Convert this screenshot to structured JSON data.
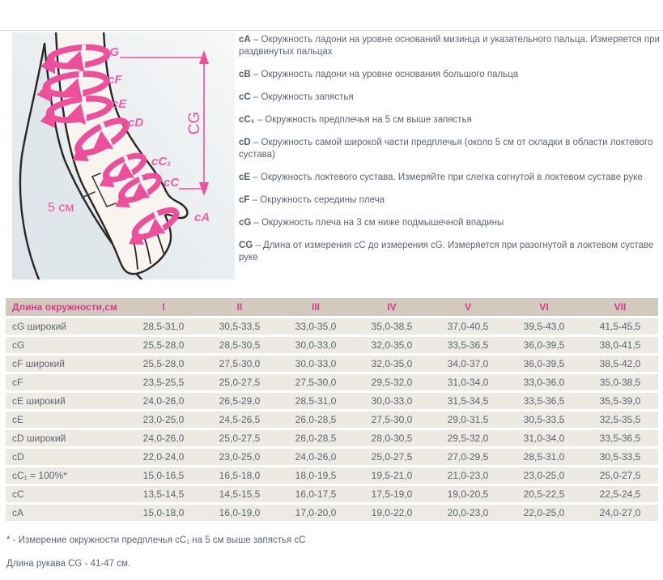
{
  "colors": {
    "accent_pink": "#ee4f9b",
    "table_header_pink": "#d93a8c",
    "table_header_bg": "#d2c9bf",
    "table_row_bg": "#edeae4",
    "body_text": "#5a6572"
  },
  "diagram": {
    "band_labels": [
      "cG",
      "cF",
      "cE",
      "cD",
      "cC₁",
      "cC",
      "cA"
    ],
    "length_dimension_label": "CG",
    "distance_label": "5 см"
  },
  "descriptions": [
    {
      "code": "cA",
      "text": "– Окружность ладони на уровне оснований мизинца и указательного пальца. Измеряется при раздвинутых пальцах"
    },
    {
      "code": "cB",
      "text": "– Окружность ладони на уровне основания большого пальца"
    },
    {
      "code": "cC",
      "text": "– Окружность запястья"
    },
    {
      "code": "cC₁",
      "text": "– Окружность предплечья на 5 см выше запястья"
    },
    {
      "code": "cD",
      "text": "– Окружность самой широкой части предплечья (около 5 см от складки в области локтевого сустава)"
    },
    {
      "code": "cE",
      "text": "– Окружность локтевого сустава. Измеряйте при слегка согнутой в локтевом суставе руке"
    },
    {
      "code": "cF",
      "text": "– Окружность середины плеча"
    },
    {
      "code": "cG",
      "text": "– Окружность плеча на 3 см ниже подмышечной впадины"
    },
    {
      "code": "CG",
      "text": "– Длина от измерения cC до измерения cG. Измеряется при разогнутой в локтевом суставе руке"
    }
  ],
  "table": {
    "header": {
      "label": "Длина окружности,см",
      "sizes": [
        "I",
        "II",
        "III",
        "IV",
        "V",
        "VI",
        "VII"
      ]
    },
    "rows": [
      {
        "label": "cG широкий",
        "values": [
          "28,5-31,0",
          "30,5-33,5",
          "33,0-35,0",
          "35,0-38,5",
          "37,0-40,5",
          "39,5-43,0",
          "41,5-45,5"
        ]
      },
      {
        "label": "cG",
        "values": [
          "25,5-28,0",
          "28,5-30,5",
          "30,0-33,0",
          "32,0-35,0",
          "33,5-36,5",
          "36,0-39,5",
          "38,0-41,5"
        ]
      },
      {
        "label": "cF широкий",
        "values": [
          "25,5-28,0",
          "27,5-30,0",
          "30,0-33,0",
          "32,0-35,0",
          "34,0-37,0",
          "36,0-39,5",
          "38,5-42,0"
        ]
      },
      {
        "label": "cF",
        "values": [
          "23,5-25,5",
          "25,0-27,5",
          "27,5-30,0",
          "29,5-32,0",
          "31,0-34,0",
          "33,0-36,0",
          "35,0-38,5"
        ]
      },
      {
        "label": "cE широкий",
        "values": [
          "24,0-26,0",
          "26,5-29,0",
          "28,5-31,0",
          "30,0-33,0",
          "31,5-34,5",
          "33,5-36,5",
          "35,5-39,0"
        ]
      },
      {
        "label": "cE",
        "values": [
          "23,0-25,0",
          "24,5-26,5",
          "26,0-28,5",
          "27,5-30,0",
          "29,0-31,5",
          "30,5-33,5",
          "32,5-35,5"
        ]
      },
      {
        "label": "cD широкий",
        "values": [
          "24,0-26,0",
          "25,0-27,5",
          "26,0-28,5",
          "28,0-30,5",
          "29,5-32,0",
          "31,0-34,0",
          "33,5-36,5"
        ]
      },
      {
        "label": "cD",
        "values": [
          "22,0-24,0",
          "23,0-25,0",
          "24,0-26,0",
          "25,0-27,5",
          "27,0-29,5",
          "28,5-31,0",
          "30,5-33,5"
        ]
      },
      {
        "label": "cC₁ = 100%*",
        "values": [
          "15,0-16,5",
          "16,5-18,0",
          "18,0-19,5",
          "19,5-21,0",
          "21,0-23,0",
          "23,0-25,0",
          "25,0-27,5"
        ]
      },
      {
        "label": "cC",
        "values": [
          "13,5-14,5",
          "14,5-15,5",
          "16,0-17,5",
          "17,5-19,0",
          "19,0-20,5",
          "20,5-22,5",
          "22,5-24,5"
        ]
      },
      {
        "label": "cA",
        "values": [
          "15,0-18,0",
          "16,0-19,0",
          "17,0-20,0",
          "19,0-22,0",
          "20,0-23,0",
          "22,0-25,0",
          "24,0-27,0"
        ]
      }
    ]
  },
  "footnotes": [
    "* - Измерение окружности предплечья cC₁ на 5 см выше запястья cC",
    "Длина рукава CG - 41-47 см."
  ]
}
